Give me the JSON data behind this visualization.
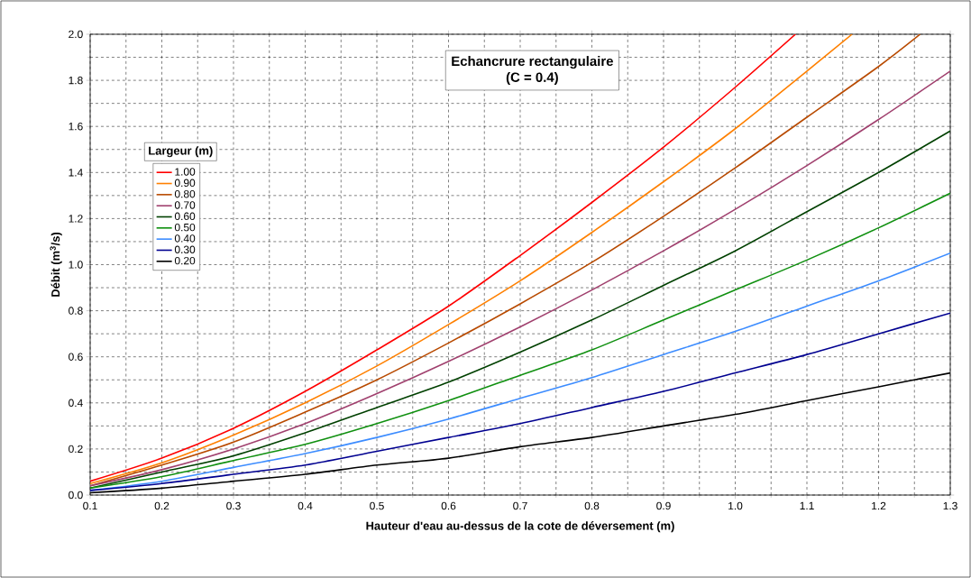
{
  "chart_data": {
    "type": "line",
    "title": "Echancrure rectangulaire",
    "subtitle": "(C = 0.4)",
    "xlabel": "Hauteur d'eau au-dessus de la cote de déversement (m)",
    "ylabel": "Débit (m$^{3}$/s)",
    "legend_title": "Largeur (m)",
    "legend": "top left",
    "grid": true,
    "line_style": "solid",
    "xlim": [
      0.1,
      1.3
    ],
    "ylim": [
      0,
      2.0
    ],
    "xticks": [
      {
        "value": 0.1,
        "label": "0.1"
      },
      {
        "value": 0.2,
        "label": "0.2"
      },
      {
        "value": 0.3,
        "label": "0.3"
      },
      {
        "value": 0.4,
        "label": "0.4"
      },
      {
        "value": 0.5,
        "label": "0.5"
      },
      {
        "value": 0.6,
        "label": "0.6"
      },
      {
        "value": 0.7,
        "label": "0.7"
      },
      {
        "value": 0.8,
        "label": "0.8"
      },
      {
        "value": 0.9,
        "label": "0.9"
      },
      {
        "value": 1,
        "label": "1.0"
      },
      {
        "value": 1.1,
        "label": "1.1"
      },
      {
        "value": 1.2,
        "label": "1.2"
      },
      {
        "value": 1.3,
        "label": "1.3"
      }
    ],
    "yticks": [
      {
        "value": 0,
        "label": "0.0"
      },
      {
        "value": 0.2,
        "label": "0.2"
      },
      {
        "value": 0.4,
        "label": "0.4"
      },
      {
        "value": 0.6,
        "label": "0.6"
      },
      {
        "value": 0.8,
        "label": "0.8"
      },
      {
        "value": 1,
        "label": "1.0"
      },
      {
        "value": 1.2,
        "label": "1.2"
      },
      {
        "value": 1.4,
        "label": "1.4"
      },
      {
        "value": 1.6,
        "label": "1.6"
      },
      {
        "value": 1.8,
        "label": "1.8"
      },
      {
        "value": 2,
        "label": "2.0"
      }
    ],
    "x": [
      0.1,
      0.2,
      0.3,
      0.4,
      0.5,
      0.6,
      0.7,
      0.8,
      0.9,
      1.0,
      1.1,
      1.2,
      1.3
    ],
    "series": [
      {
        "name": "1.00",
        "color": "#ff0000",
        "x": [
          0.1,
          0.2,
          0.3,
          0.4,
          0.5,
          0.6,
          0.7,
          0.8,
          0.9,
          1.0,
          1.084
        ],
        "values": [
          0.06,
          0.16,
          0.29,
          0.45,
          0.63,
          0.82,
          1.04,
          1.27,
          1.51,
          1.77,
          2.0
        ]
      },
      {
        "name": "0.90",
        "color": "#ff8000",
        "x": [
          0.1,
          0.2,
          0.3,
          0.4,
          0.5,
          0.6,
          0.7,
          0.8,
          0.9,
          1.0,
          1.1,
          1.163
        ],
        "values": [
          0.05,
          0.14,
          0.26,
          0.4,
          0.56,
          0.74,
          0.93,
          1.14,
          1.36,
          1.59,
          1.84,
          2.0
        ]
      },
      {
        "name": "0.80",
        "color": "#b84a00",
        "x": [
          0.1,
          0.2,
          0.3,
          0.4,
          0.5,
          0.6,
          0.7,
          0.8,
          0.9,
          1.0,
          1.1,
          1.2,
          1.258
        ],
        "values": [
          0.04,
          0.13,
          0.23,
          0.36,
          0.5,
          0.66,
          0.83,
          1.01,
          1.21,
          1.42,
          1.64,
          1.86,
          2.0
        ]
      },
      {
        "name": "0.70",
        "color": "#a0406e",
        "values": [
          0.04,
          0.11,
          0.2,
          0.31,
          0.44,
          0.58,
          0.73,
          0.89,
          1.06,
          1.24,
          1.43,
          1.63,
          1.84
        ]
      },
      {
        "name": "0.60",
        "color": "#004000",
        "values": [
          0.03,
          0.1,
          0.17,
          0.27,
          0.38,
          0.49,
          0.62,
          0.76,
          0.91,
          1.06,
          1.23,
          1.4,
          1.58
        ]
      },
      {
        "name": "0.50",
        "color": "#109010",
        "values": [
          0.03,
          0.08,
          0.15,
          0.22,
          0.31,
          0.41,
          0.52,
          0.63,
          0.76,
          0.89,
          1.02,
          1.16,
          1.31
        ]
      },
      {
        "name": "0.40",
        "color": "#3c8cff",
        "values": [
          0.02,
          0.06,
          0.12,
          0.18,
          0.25,
          0.33,
          0.42,
          0.51,
          0.61,
          0.71,
          0.82,
          0.93,
          1.05
        ]
      },
      {
        "name": "0.30",
        "color": "#000090",
        "values": [
          0.02,
          0.05,
          0.09,
          0.13,
          0.19,
          0.25,
          0.31,
          0.38,
          0.45,
          0.53,
          0.61,
          0.7,
          0.79
        ]
      },
      {
        "name": "0.20",
        "color": "#000000",
        "values": [
          0.01,
          0.03,
          0.06,
          0.09,
          0.13,
          0.16,
          0.21,
          0.25,
          0.3,
          0.35,
          0.41,
          0.47,
          0.53
        ]
      }
    ]
  }
}
